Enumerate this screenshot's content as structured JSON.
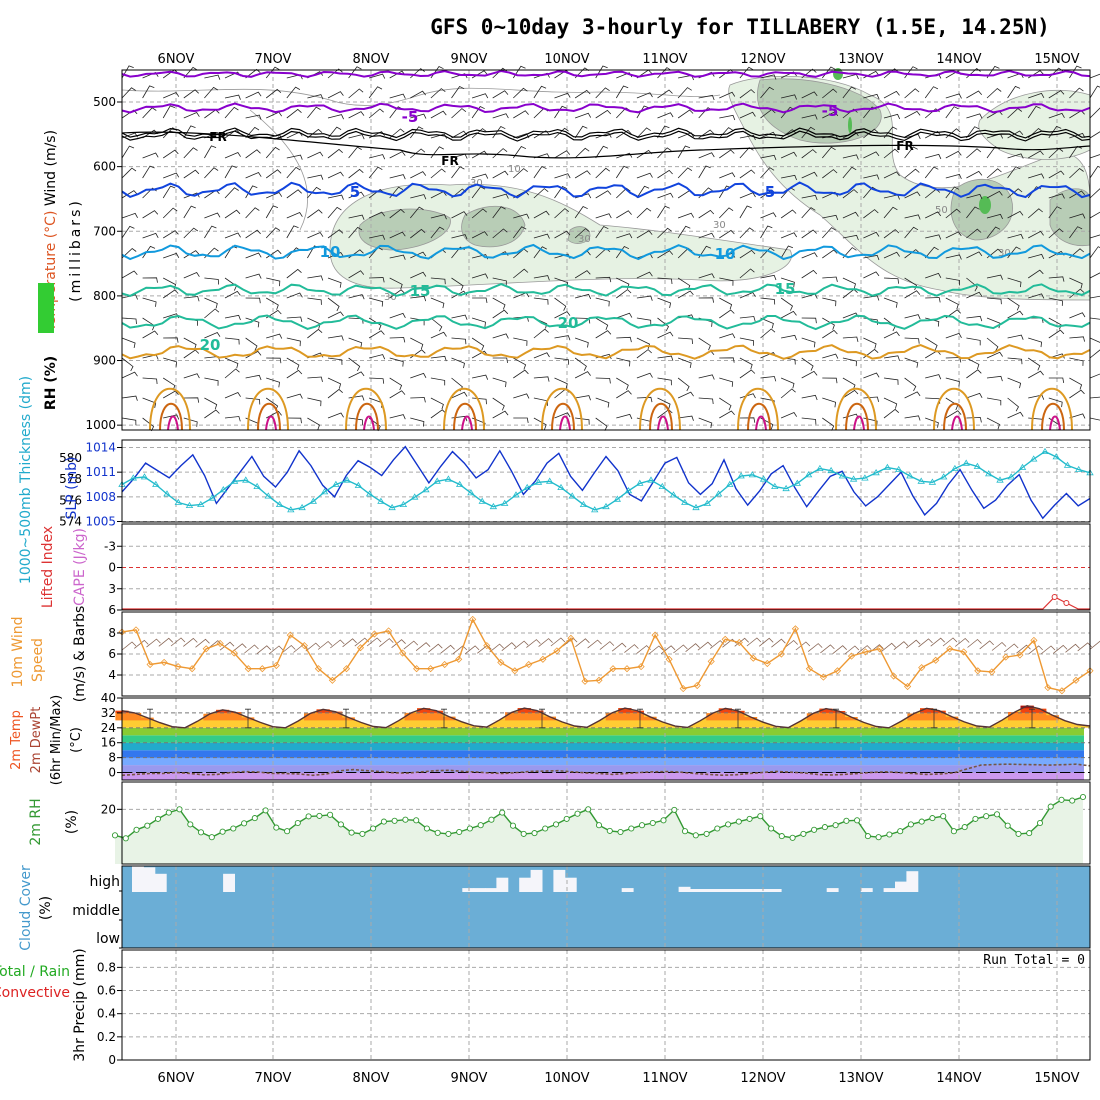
{
  "title": "GFS 0~10day 3-hourly for TILLABERY (1.5E, 14.25N)",
  "dates": [
    "6NOV",
    "7NOV",
    "8NOV",
    "9NOV",
    "10NOV",
    "11NOV",
    "12NOV",
    "13NOV",
    "14NOV",
    "15NOV"
  ],
  "colors": {
    "grid": "#aaaaaa",
    "frame": "#000000",
    "purple": "#8800cc",
    "blue": "#1144dd",
    "lightblue": "#1199dd",
    "teal": "#22bb99",
    "orange": "#dd9922",
    "darkorange": "#cc6611",
    "magenta": "#cc1188",
    "slp": "#1133cc",
    "thickness": "#22bbcc",
    "wind": "#ee9933",
    "rh2m": "#339933",
    "rhfill": "#e8f3e6",
    "cloud": "#6baed6",
    "rain_green": "#22aa22",
    "conv_red": "#dd2222",
    "lifted": "#dd3333",
    "cape": "#cc66cc"
  },
  "chart_data": [
    {
      "panel": "upper_air",
      "type": "heatmap",
      "ylabel_parts": [
        "Wind (m/s)",
        "Temperature (°C)",
        "RH (%)"
      ],
      "ylabel_unit": "(millibars)",
      "y_ticks": [
        "500",
        "600",
        "700",
        "800",
        "900",
        "1000"
      ],
      "ylim": [
        450,
        1000
      ],
      "isotherm_labels": [
        "-5",
        "-5",
        "FR",
        "FR",
        "FR",
        "5",
        "5",
        "10",
        "10",
        "15",
        "15",
        "20",
        "20"
      ],
      "rh_labels": [
        "30",
        "10",
        "30",
        "30",
        "50",
        "30",
        "30"
      ]
    },
    {
      "panel": "slp_thickness",
      "type": "line",
      "ylabel_left": "1000~500mb Thickness (dm)",
      "ylabel_right": "SLP (mb)",
      "thickness_ticks": [
        "580",
        "578",
        "576",
        "574"
      ],
      "slp_ticks": [
        "1014",
        "1011",
        "1008",
        "1005"
      ],
      "series": [
        {
          "name": "SLP (mb)",
          "values": [
            1008.6,
            1010.2,
            1012.1,
            1011.2,
            1010.3,
            1011.8,
            1013.1,
            1010.6,
            1007.2,
            1009.1,
            1011.0,
            1012.9,
            1010.5,
            1009.2,
            1011.0,
            1013.6,
            1011.8,
            1009.4,
            1008.0,
            1010.6,
            1012.4,
            1011.6,
            1010.6,
            1012.5,
            1014.1,
            1011.9,
            1009.7,
            1011.7,
            1013.5,
            1012.1,
            1010.3,
            1011.3,
            1013.6,
            1011.1,
            1008.3,
            1009.9,
            1012.1,
            1013.3,
            1010.5,
            1008.8,
            1010.9,
            1012.9,
            1011.2,
            1008.3,
            1007.5,
            1009.8,
            1012.1,
            1012.8,
            1009.7,
            1008.3,
            1009.6,
            1012.5,
            1009.0,
            1007.0,
            1008.7,
            1010.8,
            1011.8,
            1009.1,
            1006.8,
            1008.7,
            1010.5,
            1011.1,
            1008.6,
            1006.9,
            1008.0,
            1009.5,
            1011.0,
            1008.1,
            1005.8,
            1007.2,
            1009.5,
            1011.3,
            1008.8,
            1006.6,
            1007.6,
            1009.4,
            1010.7,
            1007.6,
            1005.4,
            1007.0,
            1008.4,
            1006.9,
            1007.8
          ]
        },
        {
          "name": "Thickness (dm)",
          "values": [
            577.5,
            578.1,
            578.2,
            577.5,
            576.6,
            575.8,
            575.5,
            575.6,
            576.2,
            577.0,
            577.8,
            577.9,
            577.3,
            576.4,
            575.6,
            575.1,
            575.3,
            575.9,
            576.8,
            577.5,
            577.9,
            577.4,
            576.6,
            575.9,
            575.3,
            575.6,
            576.3,
            577.0,
            577.8,
            578.0,
            577.5,
            576.7,
            575.9,
            575.4,
            575.7,
            576.5,
            577.2,
            577.7,
            577.8,
            577.2,
            576.4,
            575.6,
            575.1,
            575.4,
            576.1,
            576.9,
            577.6,
            577.9,
            577.3,
            576.5,
            575.8,
            575.3,
            575.7,
            576.6,
            577.5,
            578.3,
            578.4,
            578.0,
            577.3,
            577.1,
            577.6,
            578.4,
            579.0,
            578.8,
            578.3,
            578.0,
            578.1,
            578.6,
            579.1,
            578.9,
            578.3,
            577.8,
            577.7,
            578.2,
            579.0,
            579.5,
            579.2,
            578.5,
            577.9,
            578.2,
            579.1,
            579.9,
            580.6,
            580.1,
            579.3,
            578.9,
            578.6
          ]
        }
      ]
    },
    {
      "panel": "stability",
      "type": "line",
      "ylabel_left": "Lifted Index",
      "ylabel_right": "CAPE (J/kg)",
      "y_ticks": [
        "-3",
        "0",
        "3",
        "6"
      ],
      "series": [
        {
          "name": "CAPE (J/kg)",
          "values": [
            0,
            0,
            0,
            0,
            0,
            0,
            0,
            0,
            0,
            0,
            0,
            0,
            0,
            0,
            0,
            0,
            0,
            0,
            0,
            0,
            0,
            0,
            0,
            0,
            0,
            0,
            0,
            0,
            0,
            0,
            0,
            0,
            0,
            0,
            0,
            0,
            0,
            0,
            0,
            0,
            0,
            0,
            0,
            0,
            0,
            0,
            0,
            0,
            0,
            0,
            0,
            0,
            0,
            0,
            0,
            0,
            0,
            0,
            0,
            0,
            0,
            0,
            0,
            0,
            0,
            0,
            0,
            0,
            0,
            0,
            0,
            0,
            0,
            0,
            0,
            0,
            0,
            0,
            0,
            12,
            6,
            0,
            0
          ]
        }
      ]
    },
    {
      "panel": "wind10m",
      "type": "line",
      "ylabel_main": "10m Wind",
      "ylabel_sub": "Speed",
      "ylabel_unit": "(m/s) & Barbs",
      "y_ticks": [
        "8",
        "6",
        "4"
      ],
      "ylim": [
        2.0,
        10.0
      ],
      "series": [
        {
          "name": "10m Wind Speed (m/s)",
          "values": [
            8.1,
            8.3,
            5.0,
            5.2,
            4.8,
            4.6,
            6.5,
            7.0,
            6.1,
            4.6,
            4.6,
            4.9,
            7.8,
            6.8,
            4.6,
            3.5,
            4.6,
            6.6,
            7.9,
            8.2,
            6.1,
            4.6,
            4.6,
            5.0,
            5.5,
            9.3,
            6.8,
            5.2,
            4.4,
            5.0,
            5.5,
            6.3,
            7.5,
            3.4,
            3.5,
            4.6,
            4.6,
            4.8,
            7.8,
            5.5,
            2.7,
            3.0,
            5.3,
            7.4,
            7.1,
            5.6,
            5.1,
            6.0,
            8.4,
            4.6,
            3.8,
            4.4,
            5.8,
            6.2,
            6.5,
            3.9,
            2.9,
            4.7,
            5.4,
            6.5,
            6.2,
            4.4,
            4.3,
            5.7,
            5.9,
            7.3,
            2.8,
            2.5,
            3.5,
            4.4
          ]
        }
      ]
    },
    {
      "panel": "temp2m",
      "type": "area",
      "ylabel_lines": [
        "2m Temp",
        "2m DewPt",
        "(6hr Min/Max)",
        "(°C)"
      ],
      "y_ticks": [
        "40",
        "32",
        "24",
        "16",
        "8",
        "0"
      ],
      "ylim": [
        -4,
        40
      ],
      "series": [
        {
          "name": "2m Temp (°C)",
          "values": [
            33.2,
            32.0,
            29.5,
            26.8,
            24.6,
            24.0,
            27.5,
            31.5,
            33.6,
            32.4,
            29.6,
            26.9,
            24.6,
            24.0,
            27.6,
            31.8,
            33.9,
            32.6,
            29.6,
            26.9,
            24.7,
            24.1,
            27.8,
            32.0,
            34.5,
            33.2,
            30.0,
            27.3,
            25.1,
            24.4,
            28.1,
            32.3,
            34.6,
            33.3,
            30.0,
            27.2,
            25.0,
            24.3,
            27.9,
            32.1,
            34.6,
            33.2,
            29.9,
            27.1,
            24.9,
            24.2,
            27.8,
            31.9,
            34.4,
            33.1,
            29.8,
            27.0,
            24.8,
            24.1,
            27.7,
            31.8,
            34.3,
            33.0,
            29.8,
            26.9,
            24.7,
            24.0,
            27.6,
            31.7,
            34.5,
            33.2,
            30.0,
            27.2,
            25.0,
            24.4,
            28.1,
            32.4,
            35.8,
            34.2,
            30.8,
            27.8,
            25.8,
            25.0
          ]
        },
        {
          "name": "2m DewPt (°C)",
          "values": [
            -1.5,
            -1.0,
            -0.5,
            -0.5,
            0.0,
            -0.5,
            -1.2,
            -1.0,
            0.0,
            0.5,
            0.3,
            -0.5,
            -0.5,
            -0.8,
            -1.5,
            -0.8,
            1.0,
            1.6,
            1.0,
            0.5,
            -0.2,
            -0.3,
            0.4,
            1.0,
            1.2,
            0.6,
            0.3,
            -0.3,
            -0.5,
            0.0,
            0.6,
            0.8,
            1.0,
            0.4,
            -0.2,
            -0.5,
            -1.0,
            -0.5,
            0.0,
            0.4,
            0.5,
            0.2,
            -0.5,
            -1.0,
            -1.4,
            -1.2,
            -0.5,
            0.0,
            0.6,
            0.2,
            -0.2,
            -1.0,
            -1.3,
            -1.0,
            -0.5,
            0.1,
            0.4,
            0.0,
            -0.5,
            -1.0,
            -0.8,
            -0.2,
            2.0,
            4.0,
            4.3,
            4.5,
            4.3,
            4.2,
            4.0,
            4.2,
            4.5,
            3.6
          ]
        }
      ]
    },
    {
      "panel": "rh2m",
      "type": "area",
      "ylabel_main": "2m RH",
      "ylabel_unit": "(%)",
      "y_ticks": [
        "20"
      ],
      "ylim": [
        0,
        30
      ],
      "series": [
        {
          "name": "2m RH (%)",
          "values": [
            10.5,
            9.4,
            12.5,
            14.0,
            16.5,
            18.8,
            20.0,
            14.5,
            11.6,
            9.8,
            11.8,
            13.0,
            14.9,
            16.8,
            19.6,
            13.3,
            12.0,
            15.0,
            17.4,
            17.6,
            18.0,
            14.5,
            11.5,
            11.0,
            13.0,
            15.5,
            15.8,
            16.2,
            16.0,
            13.0,
            11.4,
            11.0,
            11.7,
            13.0,
            14.2,
            16.2,
            18.8,
            14.0,
            11.0,
            11.3,
            13.0,
            14.5,
            16.5,
            18.4,
            20.0,
            14.2,
            12.1,
            11.7,
            13.0,
            14.2,
            15.0,
            16.0,
            19.8,
            12.0,
            10.5,
            11.0,
            13.0,
            14.5,
            15.5,
            16.5,
            17.5,
            13.0,
            10.2,
            9.6,
            11.0,
            12.5,
            13.5,
            14.2,
            15.8,
            16.0,
            10.2,
            9.8,
            10.8,
            12.0,
            14.5,
            15.5,
            16.8,
            17.5,
            12.0,
            13.5,
            16.5,
            17.5,
            18.2,
            14.0,
            11.0,
            11.3,
            15.0,
            21.0,
            23.5,
            23.2,
            24.5
          ]
        }
      ]
    },
    {
      "panel": "cloud",
      "type": "bar",
      "ylabel_main": "Cloud Cover",
      "ylabel_unit": "(%)",
      "levels": [
        "high",
        "middle",
        "low"
      ],
      "series": [
        {
          "name": "high cloud (%)",
          "values": [
            100,
            95,
            70,
            0,
            0,
            0,
            0,
            0,
            70,
            0,
            0,
            0,
            0,
            0,
            0,
            0,
            0,
            0,
            0,
            0,
            0,
            0,
            0,
            0,
            0,
            0,
            0,
            0,
            0,
            15,
            15,
            15,
            55,
            0,
            55,
            85,
            0,
            85,
            55,
            0,
            0,
            0,
            0,
            15,
            0,
            0,
            0,
            0,
            20,
            10,
            10,
            10,
            10,
            10,
            10,
            10,
            10,
            0,
            0,
            0,
            0,
            15,
            0,
            0,
            15,
            0,
            15,
            40,
            80,
            0,
            0,
            0,
            0,
            0,
            0,
            0,
            0,
            0,
            0,
            0,
            0,
            0,
            0,
            0,
            0
          ]
        }
      ]
    },
    {
      "panel": "precip",
      "type": "bar",
      "ylabel_left_top": "Total / Rain",
      "ylabel_left_bottom": "Convective",
      "ylabel_unit": "3hr Precip (mm)",
      "y_ticks": [
        "0.8",
        "0.6",
        "0.4",
        "0.2",
        "0"
      ],
      "ylim": [
        0,
        0.95
      ],
      "run_total_label": "Run Total = 0",
      "series": [
        {
          "name": "3hr Precip (mm)",
          "values": []
        }
      ]
    }
  ]
}
